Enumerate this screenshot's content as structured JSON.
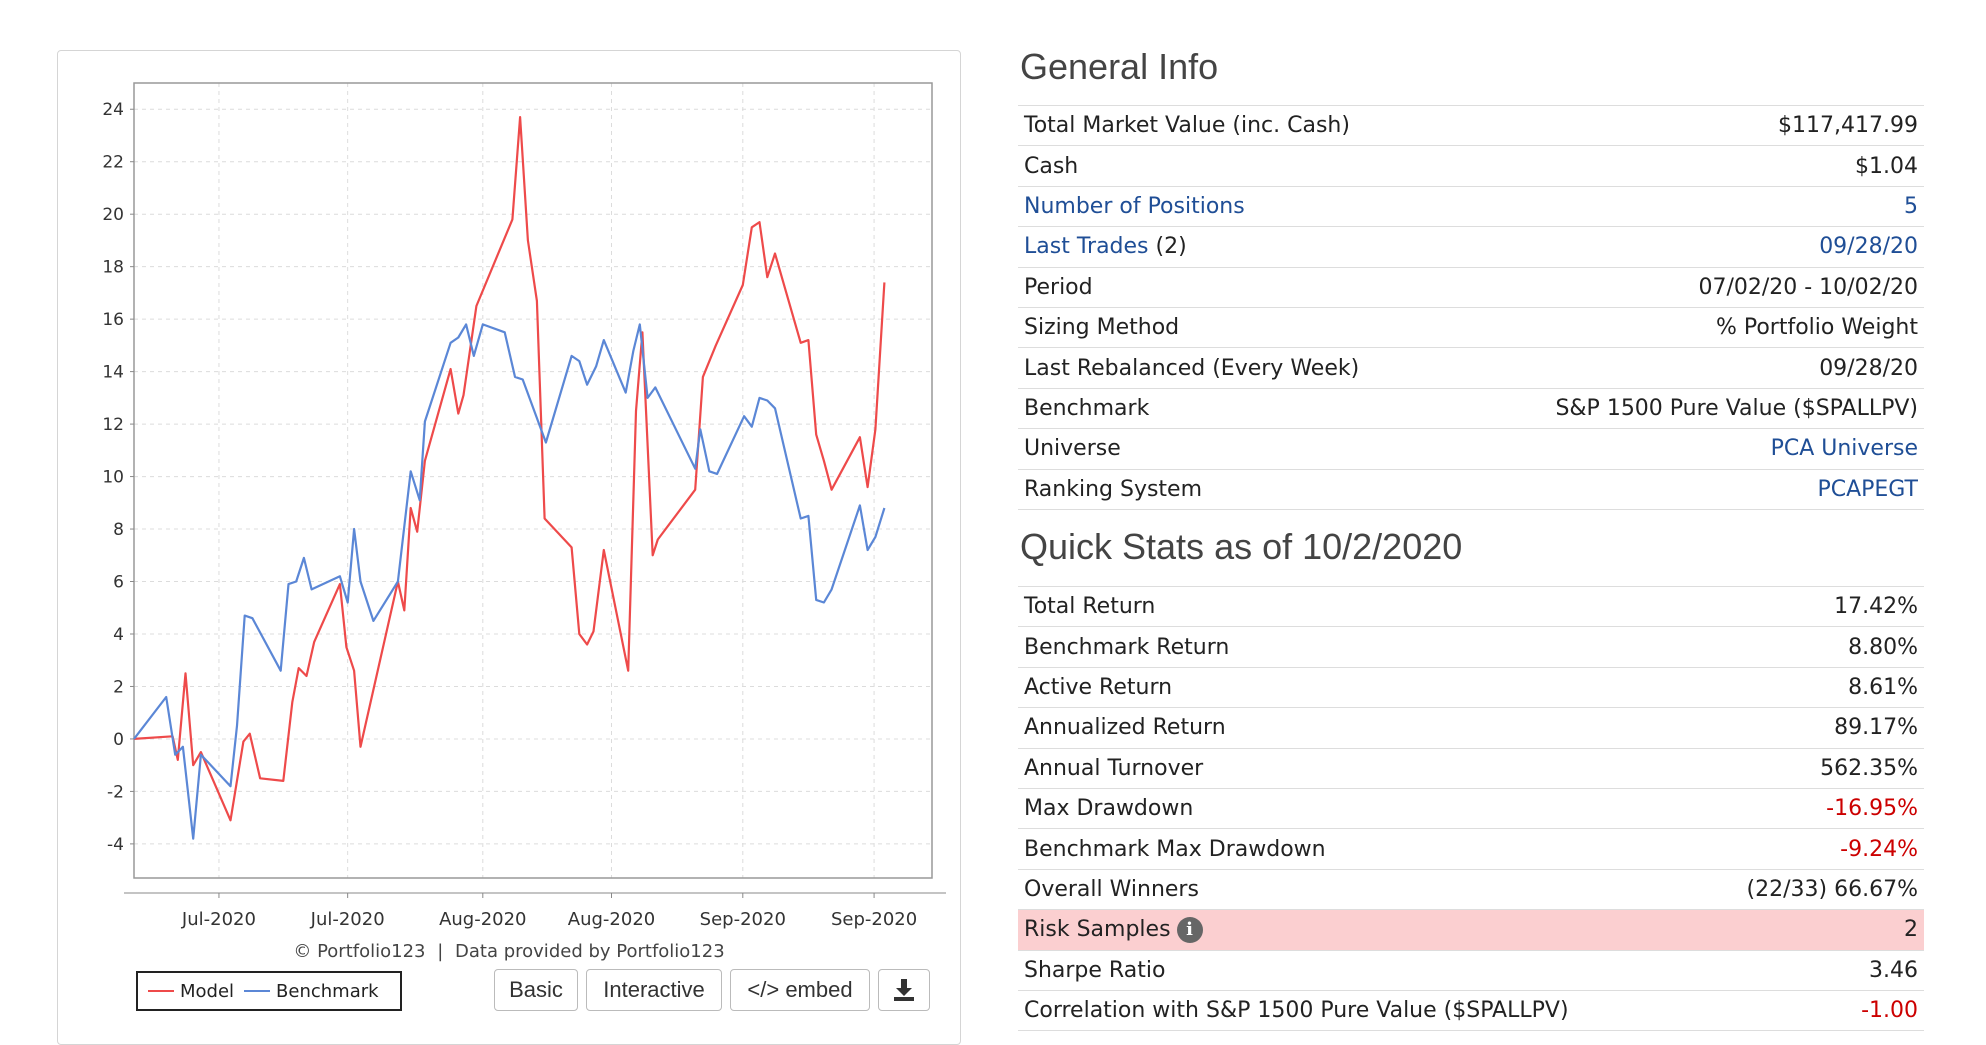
{
  "chart_data": {
    "type": "line",
    "x_ticks": [
      "Jul-2020",
      "Jul-2020",
      "Aug-2020",
      "Aug-2020",
      "Sep-2020",
      "Sep-2020"
    ],
    "y_ticks": [
      24,
      22,
      20,
      18,
      16,
      14,
      12,
      10,
      8,
      6,
      4,
      2,
      0,
      -2,
      -4
    ],
    "ylim": [
      -5.3,
      25.0
    ],
    "xlim": [
      0,
      62
    ],
    "grid": true,
    "legend_position": "bottom-left",
    "series": [
      {
        "name": "Model",
        "color": "#ee4a4a",
        "points": [
          [
            0,
            0
          ],
          [
            3,
            0.1
          ],
          [
            3.4,
            -0.8
          ],
          [
            4,
            2.5
          ],
          [
            4.6,
            -1.0
          ],
          [
            5.2,
            -0.5
          ],
          [
            7.5,
            -3.1
          ],
          [
            8.5,
            -0.1
          ],
          [
            9,
            0.2
          ],
          [
            9.8,
            -1.5
          ],
          [
            11.6,
            -1.6
          ],
          [
            12.3,
            1.4
          ],
          [
            12.8,
            2.7
          ],
          [
            13.4,
            2.4
          ],
          [
            14,
            3.7
          ],
          [
            16,
            5.9
          ],
          [
            16.5,
            3.5
          ],
          [
            17.1,
            2.6
          ],
          [
            17.6,
            -0.3
          ],
          [
            20.5,
            6.0
          ],
          [
            21,
            4.9
          ],
          [
            21.5,
            8.8
          ],
          [
            22,
            7.9
          ],
          [
            22.6,
            10.6
          ],
          [
            24.6,
            14.1
          ],
          [
            25.2,
            12.4
          ],
          [
            25.6,
            13.1
          ],
          [
            26.6,
            16.5
          ],
          [
            29.4,
            19.8
          ],
          [
            30,
            23.7
          ],
          [
            30.6,
            19.0
          ],
          [
            31.3,
            16.7
          ],
          [
            31.9,
            8.4
          ],
          [
            34,
            7.3
          ],
          [
            34.6,
            4.0
          ],
          [
            35.2,
            3.6
          ],
          [
            35.7,
            4.1
          ],
          [
            36.5,
            7.2
          ],
          [
            38.4,
            2.6
          ],
          [
            39,
            12.5
          ],
          [
            39.5,
            15.5
          ],
          [
            40.3,
            7.0
          ],
          [
            40.7,
            7.6
          ],
          [
            43.6,
            9.5
          ],
          [
            44.2,
            13.8
          ],
          [
            45.2,
            15.0
          ],
          [
            47.3,
            17.3
          ],
          [
            48,
            19.5
          ],
          [
            48.6,
            19.7
          ],
          [
            49.2,
            17.6
          ],
          [
            49.8,
            18.5
          ],
          [
            51.8,
            15.1
          ],
          [
            52.4,
            15.2
          ],
          [
            53,
            11.6
          ],
          [
            53.6,
            10.6
          ],
          [
            54.2,
            9.5
          ],
          [
            56.4,
            11.5
          ],
          [
            57,
            9.6
          ],
          [
            57.6,
            11.8
          ],
          [
            58.3,
            17.4
          ]
        ]
      },
      {
        "name": "Benchmark",
        "color": "#5b87d6",
        "points": [
          [
            0,
            0
          ],
          [
            2.5,
            1.6
          ],
          [
            3.2,
            -0.6
          ],
          [
            3.8,
            -0.3
          ],
          [
            4.6,
            -3.8
          ],
          [
            5.2,
            -0.6
          ],
          [
            7.5,
            -1.8
          ],
          [
            8,
            0.5
          ],
          [
            8.6,
            4.7
          ],
          [
            9.2,
            4.6
          ],
          [
            11.4,
            2.6
          ],
          [
            12,
            5.9
          ],
          [
            12.6,
            6.0
          ],
          [
            13.2,
            6.9
          ],
          [
            13.8,
            5.7
          ],
          [
            16,
            6.2
          ],
          [
            16.6,
            5.2
          ],
          [
            17.1,
            8.0
          ],
          [
            17.6,
            6.0
          ],
          [
            18.6,
            4.5
          ],
          [
            20.5,
            6.0
          ],
          [
            21.5,
            10.2
          ],
          [
            22.2,
            9.1
          ],
          [
            22.6,
            12.1
          ],
          [
            24.6,
            15.1
          ],
          [
            25.2,
            15.3
          ],
          [
            25.8,
            15.8
          ],
          [
            26.4,
            14.6
          ],
          [
            27.1,
            15.8
          ],
          [
            28.8,
            15.5
          ],
          [
            29.6,
            13.8
          ],
          [
            30.2,
            13.7
          ],
          [
            32,
            11.3
          ],
          [
            34,
            14.6
          ],
          [
            34.6,
            14.4
          ],
          [
            35.2,
            13.5
          ],
          [
            35.9,
            14.2
          ],
          [
            36.5,
            15.2
          ],
          [
            38.2,
            13.2
          ],
          [
            38.8,
            14.8
          ],
          [
            39.3,
            15.8
          ],
          [
            39.9,
            13.0
          ],
          [
            40.5,
            13.4
          ],
          [
            43.6,
            10.3
          ],
          [
            44,
            11.8
          ],
          [
            44.7,
            10.2
          ],
          [
            45.3,
            10.1
          ],
          [
            47.4,
            12.3
          ],
          [
            48,
            11.9
          ],
          [
            48.6,
            13.0
          ],
          [
            49.2,
            12.9
          ],
          [
            49.8,
            12.6
          ],
          [
            51.8,
            8.4
          ],
          [
            52.4,
            8.5
          ],
          [
            53,
            5.3
          ],
          [
            53.6,
            5.2
          ],
          [
            54.2,
            5.7
          ],
          [
            56.4,
            8.9
          ],
          [
            57,
            7.2
          ],
          [
            57.6,
            7.7
          ],
          [
            58.3,
            8.8
          ]
        ]
      }
    ]
  },
  "chart_footer": {
    "credit_symbol": "©",
    "credit_brand": "Portfolio123",
    "credit_separator": "|",
    "credit_text": "Data provided by Portfolio123"
  },
  "chart_buttons": {
    "basic": "Basic",
    "interactive": "Interactive",
    "embed": "</> embed",
    "download_icon": "download-icon"
  },
  "general_info": {
    "title": "General Info",
    "rows": [
      {
        "label": "Total Market Value (inc. Cash)",
        "value": "$117,417.99"
      },
      {
        "label": "Cash",
        "value": "$1.04"
      },
      {
        "label": "Number of Positions",
        "value": "5"
      },
      {
        "label": "Last Trades",
        "label_suffix": "(2)",
        "value": "09/28/20"
      },
      {
        "label": "Period",
        "value": "07/02/20 - 10/02/20"
      },
      {
        "label": "Sizing Method",
        "value": "% Portfolio Weight"
      },
      {
        "label": "Last Rebalanced (Every Week)",
        "value": "09/28/20"
      },
      {
        "label": "Benchmark",
        "value": "S&P 1500 Pure Value ($SPALLPV)"
      },
      {
        "label": "Universe",
        "value": "PCA Universe"
      },
      {
        "label": "Ranking System",
        "value": "PCAPEGT"
      }
    ]
  },
  "quick_stats": {
    "title": "Quick Stats as of 10/2/2020",
    "rows": [
      {
        "label": "Total Return",
        "value": "17.42%"
      },
      {
        "label": "Benchmark Return",
        "value": "8.80%"
      },
      {
        "label": "Active Return",
        "value": "8.61%"
      },
      {
        "label": "Annualized Return",
        "value": "89.17%"
      },
      {
        "label": "Annual Turnover",
        "value": "562.35%"
      },
      {
        "label": "Max Drawdown",
        "value": "-16.95%"
      },
      {
        "label": "Benchmark Max Drawdown",
        "value": "-9.24%"
      },
      {
        "label": "Overall Winners",
        "value": "(22/33) 66.67%"
      },
      {
        "label": "Risk Samples",
        "value": "2",
        "icon": "info-icon",
        "icon_glyph": "i"
      },
      {
        "label": "Sharpe Ratio",
        "value": "3.46"
      },
      {
        "label": "Correlation with S&P 1500 Pure Value ($SPALLPV)",
        "value": "-1.00"
      }
    ]
  },
  "colors": {
    "link": "#1f4e96",
    "negative": "#cc0000",
    "highlight_row": "#fbcfd0",
    "model_line": "#ee4a4a",
    "benchmark_line": "#5b87d6"
  }
}
